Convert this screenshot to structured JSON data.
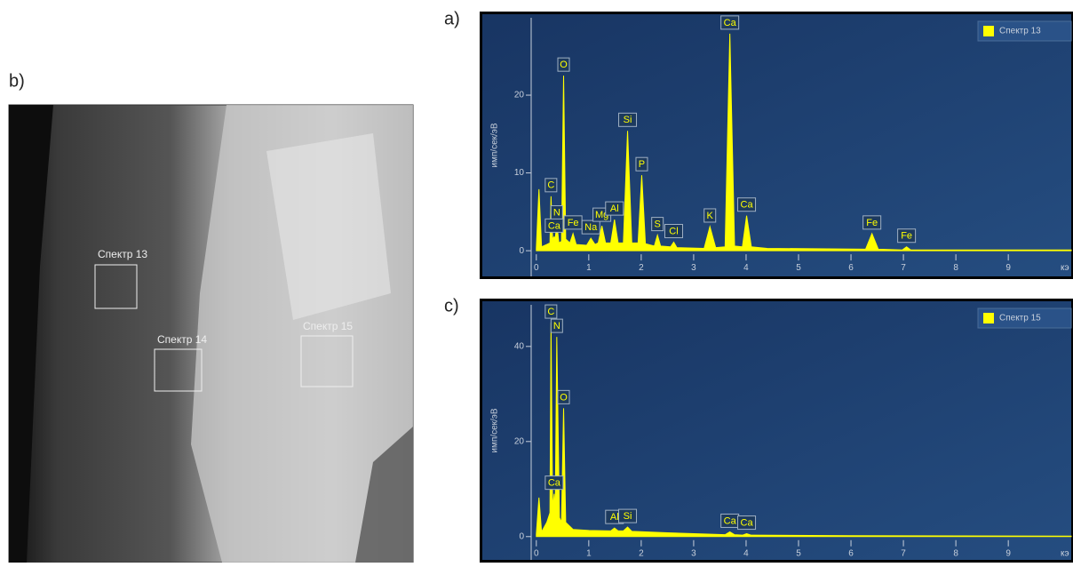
{
  "panel_labels": [
    "a)",
    "b)",
    "c)"
  ],
  "image": {
    "regions": [
      {
        "label": "Спектр 13"
      },
      {
        "label": "Спектр 14"
      },
      {
        "label": "Спектр 15"
      }
    ]
  },
  "chart_data": [
    {
      "type": "area",
      "xlabel": "кэ",
      "ylabel": "имп/сек/эВ",
      "xlim": [
        -1.03,
        10.2
      ],
      "ylim": [
        -3.3,
        30.4
      ],
      "xticks": [
        0,
        1,
        2,
        3,
        4,
        5,
        6,
        7,
        8,
        9
      ],
      "yticks": [
        0,
        10,
        20
      ],
      "legend": "top-right",
      "x": [
        0,
        0.05,
        0.1,
        0.2,
        0.26,
        0.28,
        0.31,
        0.34,
        0.36,
        0.39,
        0.43,
        0.48,
        0.52,
        0.56,
        0.64,
        0.7,
        0.76,
        0.96,
        1.04,
        1.12,
        1.18,
        1.25,
        1.32,
        1.42,
        1.49,
        1.56,
        1.66,
        1.74,
        1.82,
        1.94,
        2.01,
        2.08,
        2.25,
        2.31,
        2.37,
        2.56,
        2.62,
        2.68,
        3.2,
        3.31,
        3.42,
        3.6,
        3.69,
        3.78,
        3.93,
        4.01,
        4.1,
        4.4,
        6.28,
        6.4,
        6.52,
        6.98,
        7.06,
        7.14,
        10.2
      ],
      "series": [
        {
          "name": "Спектр 13",
          "color": "#ffff00",
          "values": [
            0.3,
            7.9,
            0.5,
            0.8,
            1,
            7,
            1.5,
            1.8,
            1.5,
            3.5,
            1,
            1.2,
            22.5,
            1.5,
            1,
            2.2,
            0.8,
            0.7,
            1.6,
            0.8,
            1,
            3.2,
            1,
            1,
            4,
            1,
            1,
            15.4,
            1,
            1,
            9.7,
            0.9,
            0.6,
            2,
            0.6,
            0.5,
            1.1,
            0.4,
            0.3,
            3.1,
            0.4,
            0.5,
            27.9,
            0.6,
            0.5,
            4.5,
            0.5,
            0.3,
            0.2,
            2.2,
            0.2,
            0.1,
            0.5,
            0.1,
            0.1
          ]
        }
      ],
      "annotations": [
        {
          "label": "C",
          "x": 0.28,
          "y": 7
        },
        {
          "label": "N",
          "x": 0.39,
          "y": 3.5
        },
        {
          "label": "Ca",
          "x": 0.34,
          "y": 1.8
        },
        {
          "label": "O",
          "x": 0.52,
          "y": 22.5
        },
        {
          "label": "Fe",
          "x": 0.7,
          "y": 2.2
        },
        {
          "label": "Na",
          "x": 1.04,
          "y": 1.6
        },
        {
          "label": "Mg",
          "x": 1.25,
          "y": 3.2
        },
        {
          "label": "Al",
          "x": 1.49,
          "y": 4
        },
        {
          "label": "Si",
          "x": 1.74,
          "y": 15.4
        },
        {
          "label": "P",
          "x": 2.01,
          "y": 9.7
        },
        {
          "label": "S",
          "x": 2.31,
          "y": 2
        },
        {
          "label": "Cl",
          "x": 2.62,
          "y": 1.1
        },
        {
          "label": "K",
          "x": 3.31,
          "y": 3.1
        },
        {
          "label": "Ca",
          "x": 3.69,
          "y": 27.9
        },
        {
          "label": "Ca",
          "x": 4.01,
          "y": 4.5
        },
        {
          "label": "Fe",
          "x": 6.4,
          "y": 2.2
        },
        {
          "label": "Fe",
          "x": 7.06,
          "y": 0.5
        }
      ]
    },
    {
      "type": "area",
      "xlabel": "кэ",
      "ylabel": "имп/сек/эВ",
      "xlim": [
        -1.03,
        10.2
      ],
      "ylim": [
        -4.9,
        49.5
      ],
      "xticks": [
        0,
        1,
        2,
        3,
        4,
        5,
        6,
        7,
        8,
        9
      ],
      "yticks": [
        0,
        20,
        40
      ],
      "legend": "top-right",
      "x": [
        0,
        0.05,
        0.1,
        0.2,
        0.26,
        0.28,
        0.31,
        0.34,
        0.36,
        0.39,
        0.44,
        0.48,
        0.52,
        0.56,
        0.7,
        1.0,
        1.42,
        1.49,
        1.56,
        1.66,
        1.74,
        1.82,
        2.5,
        3.6,
        3.69,
        3.78,
        3.93,
        4.01,
        4.1,
        6,
        10.2
      ],
      "series": [
        {
          "name": "Спектр 15",
          "color": "#ffff00",
          "values": [
            0.5,
            8.2,
            1,
            3,
            5,
            45,
            6,
            9,
            5,
            42,
            4,
            3,
            27,
            3,
            1.5,
            1.3,
            1.2,
            1.8,
            1.2,
            1.2,
            2,
            1.1,
            0.8,
            0.4,
            1,
            0.4,
            0.3,
            0.6,
            0.3,
            0.2,
            0.1
          ]
        }
      ],
      "annotations": [
        {
          "label": "C",
          "x": 0.28,
          "y": 45
        },
        {
          "label": "Ca",
          "x": 0.34,
          "y": 9
        },
        {
          "label": "N",
          "x": 0.39,
          "y": 42
        },
        {
          "label": "O",
          "x": 0.52,
          "y": 27
        },
        {
          "label": "Al",
          "x": 1.49,
          "y": 1.8
        },
        {
          "label": "Si",
          "x": 1.74,
          "y": 2
        },
        {
          "label": "Ca",
          "x": 3.69,
          "y": 1
        },
        {
          "label": "Ca",
          "x": 4.01,
          "y": 0.6
        }
      ]
    }
  ]
}
